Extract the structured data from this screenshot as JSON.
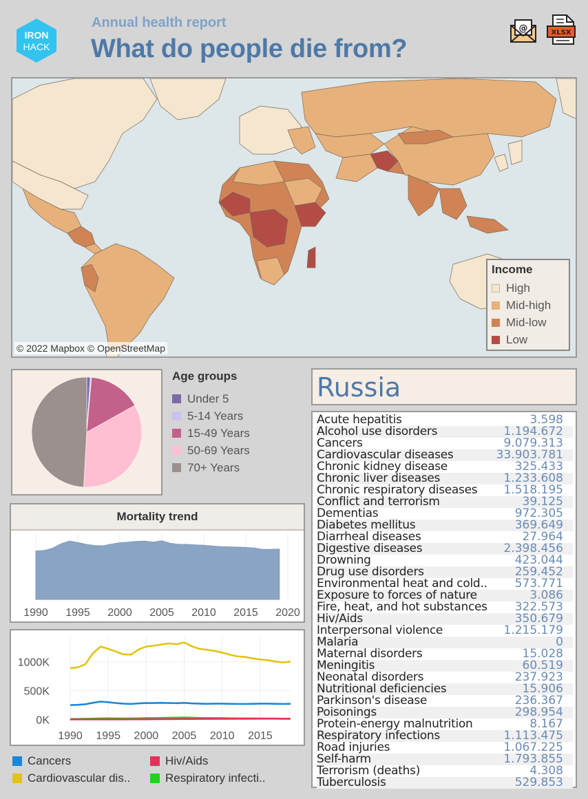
{
  "header": {
    "logo_top": "IRON",
    "logo_bottom": "HACK",
    "subtitle": "Annual health report",
    "title": "What do people die from?",
    "email_icon": "email-icon",
    "xlsx_icon": "xlsx-file-icon",
    "xlsx_label": "XLSX"
  },
  "map": {
    "credit": "© 2022 Mapbox © OpenStreetMap",
    "legend_title": "Income",
    "legend": [
      {
        "label": "High",
        "color": "#f5e6cf"
      },
      {
        "label": "Mid-high",
        "color": "#e7b17b"
      },
      {
        "label": "Mid-low",
        "color": "#d08456"
      },
      {
        "label": "Low",
        "color": "#b24c45"
      }
    ],
    "ocean_color": "#dde6e8"
  },
  "age_groups": {
    "title": "Age groups",
    "items": [
      {
        "label": "Under 5",
        "color": "#7b6aa8",
        "share": 0.01
      },
      {
        "label": "5-14 Years",
        "color": "#c9c1ef",
        "share": 0.004
      },
      {
        "label": "15-49 Years",
        "color": "#c4618a",
        "share": 0.155
      },
      {
        "label": "50-69 Years",
        "color": "#ffbfd3",
        "share": 0.34
      },
      {
        "label": "70+ Years",
        "color": "#9b908d",
        "share": 0.491
      }
    ]
  },
  "trend": {
    "title": "Mortality trend",
    "color": "#8aa5c3"
  },
  "chart_data": [
    {
      "type": "area",
      "title": "Mortality trend",
      "x_ticks": [
        "1990",
        "1995",
        "2000",
        "2005",
        "2010",
        "2015",
        "2020"
      ],
      "x": [
        1990,
        1991,
        1992,
        1993,
        1994,
        1995,
        1996,
        1997,
        1998,
        1999,
        2000,
        2001,
        2002,
        2003,
        2004,
        2005,
        2006,
        2007,
        2008,
        2009,
        2010,
        2011,
        2012,
        2013,
        2014,
        2015,
        2016,
        2017,
        2018,
        2019
      ],
      "values": [
        1.76,
        1.78,
        1.86,
        2.02,
        2.12,
        2.07,
        2.0,
        1.96,
        1.95,
        2.01,
        2.06,
        2.08,
        2.11,
        2.12,
        2.08,
        2.13,
        2.04,
        2.0,
        2.0,
        1.98,
        1.97,
        1.94,
        1.92,
        1.91,
        1.9,
        1.89,
        1.87,
        1.82,
        1.82,
        1.83
      ],
      "ylim": [
        0,
        2.4
      ]
    },
    {
      "type": "line",
      "x": [
        1990,
        1991,
        1992,
        1993,
        1994,
        1995,
        1996,
        1997,
        1998,
        1999,
        2000,
        2001,
        2002,
        2003,
        2004,
        2005,
        2006,
        2007,
        2008,
        2009,
        2010,
        2011,
        2012,
        2013,
        2014,
        2015,
        2016,
        2017,
        2018,
        2019
      ],
      "x_ticks": [
        "1990",
        "1995",
        "2000",
        "2005",
        "2010",
        "2015"
      ],
      "y_ticks": [
        "1000K",
        "500K",
        "0K"
      ],
      "y_tick_values": [
        1000000,
        500000,
        0
      ],
      "ylim": [
        -30000,
        1450000
      ],
      "series": [
        {
          "name": "Cardiovascular dis..",
          "color": "#e3c313",
          "values": [
            890000,
            905000,
            960000,
            1150000,
            1265000,
            1225000,
            1180000,
            1130000,
            1125000,
            1215000,
            1265000,
            1280000,
            1300000,
            1320000,
            1305000,
            1335000,
            1270000,
            1225000,
            1210000,
            1190000,
            1160000,
            1125000,
            1095000,
            1085000,
            1060000,
            1040000,
            1030000,
            1005000,
            990000,
            1005000
          ]
        },
        {
          "name": "Cancers",
          "color": "#1b87d8",
          "values": [
            250000,
            255000,
            265000,
            290000,
            310000,
            300000,
            285000,
            275000,
            270000,
            280000,
            285000,
            285000,
            288000,
            285000,
            283000,
            288000,
            280000,
            275000,
            272000,
            275000,
            275000,
            272000,
            270000,
            270000,
            272000,
            275000,
            275000,
            272000,
            270000,
            272000
          ]
        },
        {
          "name": "Respiratory infecti..",
          "color": "#1dd31d",
          "values": [
            8000,
            10000,
            12000,
            15000,
            20000,
            22000,
            20000,
            18000,
            18000,
            22000,
            24000,
            25000,
            28000,
            30000,
            32000,
            35000,
            32000,
            28000,
            26000,
            25000,
            24000,
            22000,
            20000,
            19000,
            18000,
            17000,
            16000,
            15000,
            14000,
            14000
          ]
        },
        {
          "name": "Hiv/Aids",
          "color": "#e8305a",
          "values": [
            2000,
            2000,
            2000,
            2000,
            2000,
            2000,
            2000,
            2500,
            3000,
            3500,
            4000,
            5000,
            6000,
            7000,
            8000,
            9000,
            10000,
            11000,
            11500,
            12000,
            12500,
            13000,
            13500,
            14000,
            14500,
            15000,
            15000,
            15000,
            14500,
            14000
          ]
        }
      ]
    }
  ],
  "country": {
    "name": "Russia"
  },
  "causes": [
    {
      "name": "Acute hepatitis",
      "value": "3.598"
    },
    {
      "name": "Alcohol use disorders",
      "value": "1.194.672"
    },
    {
      "name": "Cancers",
      "value": "9.079.313"
    },
    {
      "name": "Cardiovascular diseases",
      "value": "33.903.781"
    },
    {
      "name": "Chronic kidney disease",
      "value": "325.433"
    },
    {
      "name": "Chronic liver diseases",
      "value": "1.233.608"
    },
    {
      "name": "Chronic respiratory diseases",
      "value": "1.518.195"
    },
    {
      "name": "Conflict and terrorism",
      "value": "39.125"
    },
    {
      "name": "Dementias",
      "value": "972.305"
    },
    {
      "name": "Diabetes mellitus",
      "value": "369.649"
    },
    {
      "name": "Diarrheal diseases",
      "value": "27.964"
    },
    {
      "name": "Digestive diseases",
      "value": "2.398.456"
    },
    {
      "name": "Drowning",
      "value": "423.044"
    },
    {
      "name": "Drug use disorders",
      "value": "259.452"
    },
    {
      "name": "Environmental heat and cold..",
      "value": "573.771"
    },
    {
      "name": "Exposure to forces of nature",
      "value": "3.086"
    },
    {
      "name": "Fire, heat, and hot substances",
      "value": "322.573"
    },
    {
      "name": "Hiv/Aids",
      "value": "350.679"
    },
    {
      "name": "Interpersonal violence",
      "value": "1.215.179"
    },
    {
      "name": "Malaria",
      "value": "0"
    },
    {
      "name": "Maternal disorders",
      "value": "15.028"
    },
    {
      "name": "Meningitis",
      "value": "60.519"
    },
    {
      "name": "Neonatal disorders",
      "value": "237.923"
    },
    {
      "name": "Nutritional deficiencies",
      "value": "15.906"
    },
    {
      "name": "Parkinson's disease",
      "value": "236.367"
    },
    {
      "name": "Poisonings",
      "value": "298.954"
    },
    {
      "name": "Protein-energy malnutrition",
      "value": "8.167"
    },
    {
      "name": "Respiratory infections",
      "value": "1.113.475"
    },
    {
      "name": "Road injuries",
      "value": "1.067.225"
    },
    {
      "name": "Self-harm",
      "value": "1.793.855"
    },
    {
      "name": "Terrorism (deaths)",
      "value": "4.308"
    },
    {
      "name": "Tuberculosis",
      "value": "529.853"
    }
  ]
}
